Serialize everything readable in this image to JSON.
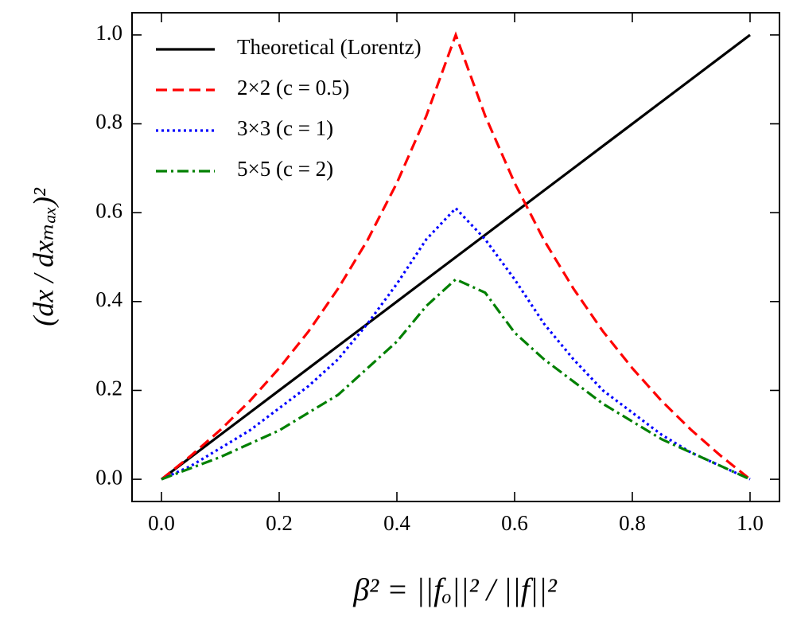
{
  "chart_data": {
    "type": "line",
    "xlabel": "β² = ||fₒ||² / ||f||²",
    "ylabel": "(dx / dxₘₐₓ)²",
    "x": [
      0,
      0.05,
      0.1,
      0.15,
      0.2,
      0.25,
      0.3,
      0.35,
      0.4,
      0.45,
      0.5,
      0.55,
      0.6,
      0.65,
      0.7,
      0.75,
      0.8,
      0.85,
      0.9,
      0.95,
      1.0
    ],
    "series": [
      {
        "name": "Theoretical (Lorentz)",
        "color": "#000000",
        "dash": "solid",
        "values": [
          0,
          0.05,
          0.1,
          0.15,
          0.2,
          0.25,
          0.3,
          0.35,
          0.4,
          0.45,
          0.5,
          0.55,
          0.6,
          0.65,
          0.7,
          0.75,
          0.8,
          0.85,
          0.9,
          0.95,
          1.0
        ]
      },
      {
        "name": "2×2 (c = 0.5)",
        "color": "#ff0000",
        "dash": "dashed",
        "values": [
          0,
          0.053,
          0.111,
          0.176,
          0.25,
          0.333,
          0.429,
          0.538,
          0.667,
          0.818,
          1.0,
          0.818,
          0.667,
          0.538,
          0.429,
          0.333,
          0.25,
          0.176,
          0.111,
          0.053,
          0
        ]
      },
      {
        "name": "3×3 (c = 1)",
        "color": "#0000ff",
        "dash": "dotted",
        "values": [
          0,
          0.03,
          0.07,
          0.11,
          0.16,
          0.21,
          0.27,
          0.35,
          0.44,
          0.54,
          0.61,
          0.54,
          0.45,
          0.35,
          0.27,
          0.2,
          0.15,
          0.1,
          0.06,
          0.03,
          0
        ]
      },
      {
        "name": "5×5 (c = 2)",
        "color": "#008000",
        "dash": "dashdot",
        "values": [
          0,
          0.025,
          0.05,
          0.08,
          0.11,
          0.15,
          0.19,
          0.25,
          0.31,
          0.39,
          0.45,
          0.42,
          0.33,
          0.27,
          0.22,
          0.17,
          0.13,
          0.09,
          0.06,
          0.03,
          0
        ]
      }
    ],
    "xlim": [
      -0.05,
      1.05
    ],
    "ylim": [
      -0.05,
      1.05
    ],
    "xticks": [
      {
        "value": 0,
        "label": "0.0"
      },
      0.2,
      0.4,
      0.6,
      0.8,
      {
        "value": 1,
        "label": "1.0"
      }
    ],
    "yticks": [
      {
        "value": 0,
        "label": "0.0"
      },
      0.2,
      0.4,
      0.6,
      0.8,
      {
        "value": 1,
        "label": "1.0"
      }
    ],
    "legend": "upper left",
    "grid": false
  }
}
